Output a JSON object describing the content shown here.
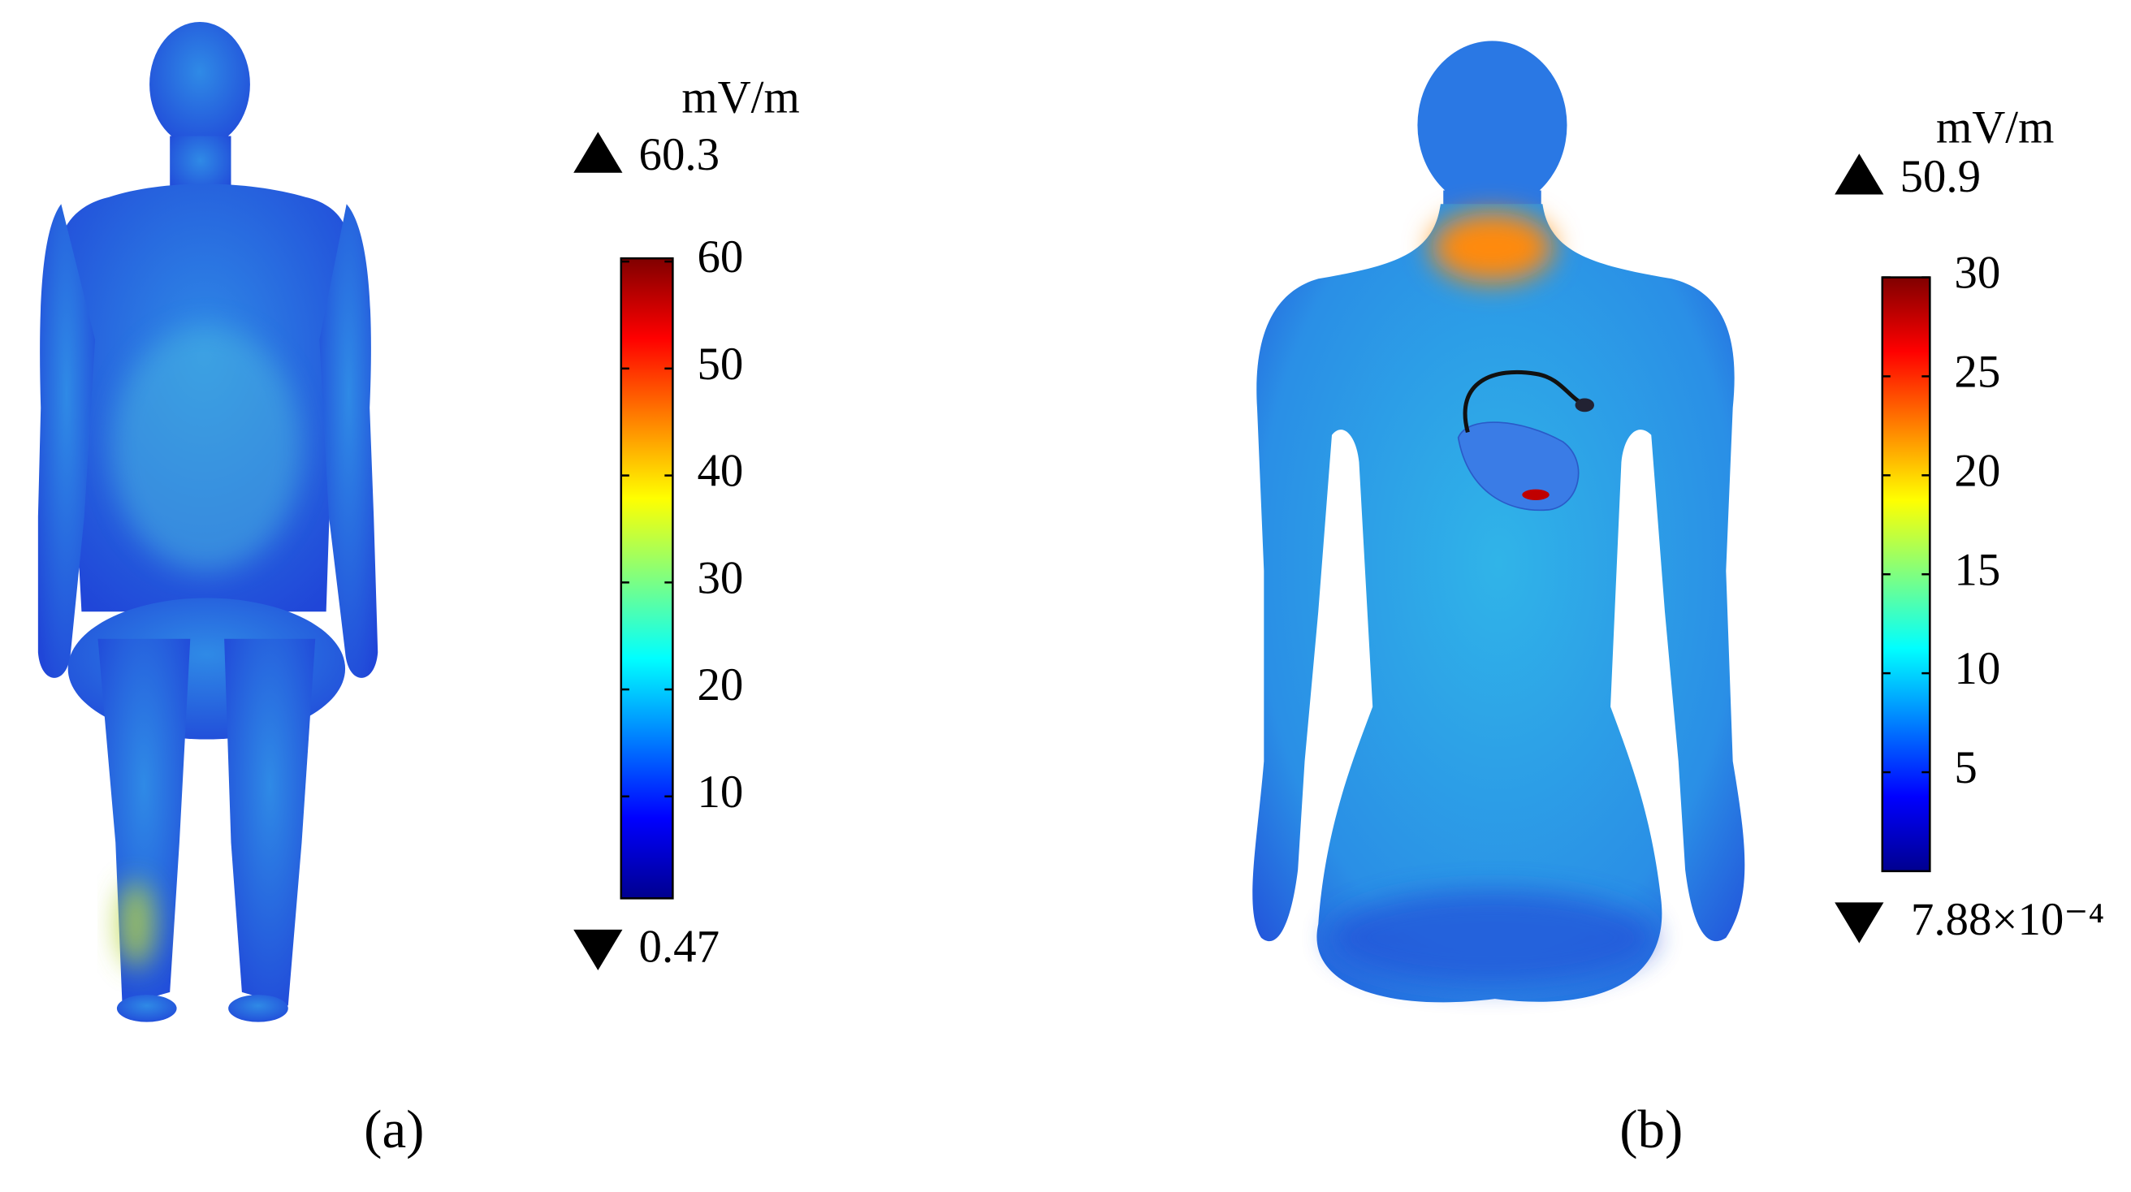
{
  "figure": {
    "panels": [
      {
        "label": "(a)",
        "unit": "mV/m",
        "max": 60.3,
        "min": 0.47,
        "colorbar": {
          "range": [
            0.47,
            60.3
          ],
          "ticks": [
            10,
            20,
            30,
            40,
            50,
            60
          ]
        }
      },
      {
        "label": "(b)",
        "unit": "mV/m",
        "max": 50.9,
        "min": {
          "value": 0.000788,
          "label": "7.88×10⁻⁴"
        },
        "colorbar": {
          "range": [
            0.000788,
            30
          ],
          "ticks": [
            5,
            10,
            15,
            20,
            25,
            30
          ]
        }
      }
    ]
  }
}
